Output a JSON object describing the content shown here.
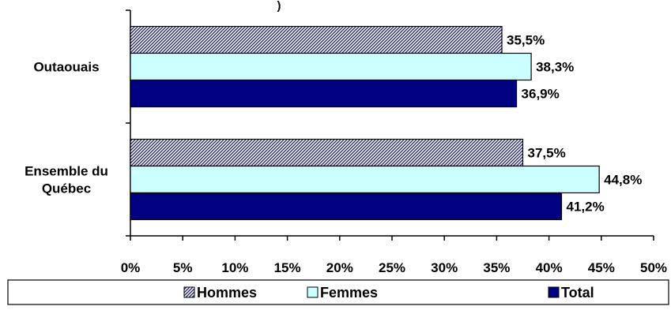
{
  "chart_data": {
    "type": "bar",
    "orientation": "horizontal",
    "title_fragment": ")",
    "categories": [
      "Outaouais",
      "Ensemble du Québec"
    ],
    "category_lines": [
      [
        "Outaouais"
      ],
      [
        "Ensemble du",
        "Québec"
      ]
    ],
    "series": [
      {
        "name": "Hommes",
        "values": [
          35.5,
          37.5
        ],
        "labels": [
          "35,5%",
          "37,5%"
        ],
        "fill": "hatch",
        "color": "#1a1a7a"
      },
      {
        "name": "Femmes",
        "values": [
          38.3,
          44.8
        ],
        "labels": [
          "38,3%",
          "44,8%"
        ],
        "fill": "solid",
        "color": "#ccffff"
      },
      {
        "name": "Total",
        "values": [
          36.9,
          41.2
        ],
        "labels": [
          "36,9%",
          "41,2%"
        ],
        "fill": "solid",
        "color": "#000080"
      }
    ],
    "xlim": [
      0,
      50
    ],
    "xticks": [
      0,
      5,
      10,
      15,
      20,
      25,
      30,
      35,
      40,
      45,
      50
    ],
    "xtick_labels": [
      "0%",
      "5%",
      "10%",
      "15%",
      "20%",
      "25%",
      "30%",
      "35%",
      "40%",
      "45%",
      "50%"
    ],
    "grid": false,
    "legend_position": "bottom",
    "legend": [
      "Hommes",
      "Femmes",
      "Total"
    ]
  }
}
